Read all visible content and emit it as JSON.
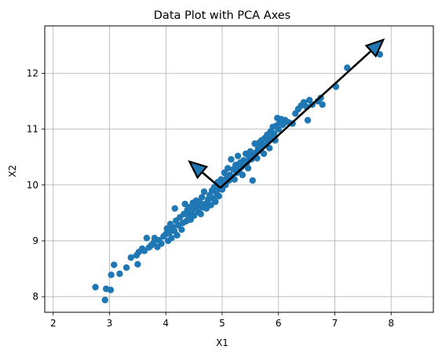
{
  "chart_data": {
    "type": "scatter",
    "title": "Data Plot with PCA Axes",
    "xlabel": "X1",
    "ylabel": "X2",
    "xlim": [
      1.85,
      8.75
    ],
    "ylim": [
      7.72,
      12.85
    ],
    "xticks": [
      2,
      3,
      4,
      5,
      6,
      7,
      8
    ],
    "yticks": [
      8,
      9,
      10,
      11,
      12
    ],
    "grid": true,
    "point_color": "#1f77b4",
    "arrow_fill": "#1f77b4",
    "arrow_stroke": "#000000",
    "mean": [
      4.97,
      9.95
    ],
    "components": [
      {
        "end": [
          7.86,
          12.6
        ]
      },
      {
        "end": [
          4.42,
          10.42
        ]
      }
    ],
    "points": [
      [
        2.75,
        8.17
      ],
      [
        2.92,
        7.94
      ],
      [
        2.94,
        8.14
      ],
      [
        3.02,
        8.12
      ],
      [
        3.03,
        8.39
      ],
      [
        3.08,
        8.57
      ],
      [
        3.18,
        8.41
      ],
      [
        3.3,
        8.52
      ],
      [
        3.38,
        8.7
      ],
      [
        3.48,
        8.74
      ],
      [
        3.5,
        8.58
      ],
      [
        3.52,
        8.8
      ],
      [
        3.58,
        8.86
      ],
      [
        3.62,
        8.82
      ],
      [
        3.66,
        9.05
      ],
      [
        3.7,
        8.88
      ],
      [
        3.74,
        8.92
      ],
      [
        3.78,
        8.96
      ],
      [
        3.8,
        9.05
      ],
      [
        3.85,
        8.89
      ],
      [
        3.88,
        9.01
      ],
      [
        3.92,
        8.95
      ],
      [
        3.96,
        9.08
      ],
      [
        4.0,
        9.12
      ],
      [
        4.02,
        9.22
      ],
      [
        4.04,
        9.0
      ],
      [
        4.06,
        9.15
      ],
      [
        4.08,
        9.3
      ],
      [
        4.1,
        9.05
      ],
      [
        4.12,
        9.25
      ],
      [
        4.15,
        9.18
      ],
      [
        4.16,
        9.58
      ],
      [
        4.18,
        9.36
      ],
      [
        4.2,
        9.1
      ],
      [
        4.22,
        9.28
      ],
      [
        4.25,
        9.42
      ],
      [
        4.28,
        9.2
      ],
      [
        4.3,
        9.32
      ],
      [
        4.32,
        9.48
      ],
      [
        4.34,
        9.66
      ],
      [
        4.36,
        9.35
      ],
      [
        4.38,
        9.55
      ],
      [
        4.4,
        9.44
      ],
      [
        4.42,
        9.6
      ],
      [
        4.44,
        9.38
      ],
      [
        4.46,
        9.5
      ],
      [
        4.48,
        9.68
      ],
      [
        4.5,
        9.45
      ],
      [
        4.52,
        9.58
      ],
      [
        4.54,
        9.72
      ],
      [
        4.56,
        9.62
      ],
      [
        4.58,
        9.52
      ],
      [
        4.6,
        9.7
      ],
      [
        4.62,
        9.48
      ],
      [
        4.64,
        9.78
      ],
      [
        4.66,
        9.6
      ],
      [
        4.68,
        9.88
      ],
      [
        4.7,
        9.66
      ],
      [
        4.72,
        9.58
      ],
      [
        4.75,
        9.74
      ],
      [
        4.78,
        9.82
      ],
      [
        4.8,
        9.64
      ],
      [
        4.82,
        9.9
      ],
      [
        4.84,
        9.76
      ],
      [
        4.86,
        9.96
      ],
      [
        4.88,
        9.7
      ],
      [
        4.9,
        9.86
      ],
      [
        4.92,
        10.05
      ],
      [
        4.94,
        9.8
      ],
      [
        4.96,
        9.94
      ],
      [
        4.98,
        10.1
      ],
      [
        5.0,
        9.92
      ],
      [
        5.02,
        10.02
      ],
      [
        5.04,
        10.22
      ],
      [
        5.06,
        10.0
      ],
      [
        5.08,
        10.12
      ],
      [
        5.1,
        10.3
      ],
      [
        5.12,
        10.08
      ],
      [
        5.14,
        10.18
      ],
      [
        5.16,
        10.46
      ],
      [
        5.18,
        10.14
      ],
      [
        5.2,
        10.28
      ],
      [
        5.22,
        10.1
      ],
      [
        5.24,
        10.36
      ],
      [
        5.26,
        10.22
      ],
      [
        5.28,
        10.52
      ],
      [
        5.3,
        10.26
      ],
      [
        5.32,
        10.4
      ],
      [
        5.34,
        10.32
      ],
      [
        5.36,
        10.18
      ],
      [
        5.38,
        10.44
      ],
      [
        5.4,
        10.36
      ],
      [
        5.42,
        10.56
      ],
      [
        5.44,
        10.4
      ],
      [
        5.46,
        10.3
      ],
      [
        5.48,
        10.5
      ],
      [
        5.5,
        10.6
      ],
      [
        5.52,
        10.46
      ],
      [
        5.54,
        10.08
      ],
      [
        5.56,
        10.52
      ],
      [
        5.58,
        10.74
      ],
      [
        5.6,
        10.58
      ],
      [
        5.62,
        10.48
      ],
      [
        5.64,
        10.66
      ],
      [
        5.66,
        10.76
      ],
      [
        5.68,
        10.62
      ],
      [
        5.7,
        10.8
      ],
      [
        5.72,
        10.7
      ],
      [
        5.74,
        10.56
      ],
      [
        5.76,
        10.84
      ],
      [
        5.78,
        10.72
      ],
      [
        5.8,
        10.9
      ],
      [
        5.82,
        10.8
      ],
      [
        5.84,
        10.66
      ],
      [
        5.86,
        10.96
      ],
      [
        5.88,
        10.84
      ],
      [
        5.9,
        11.04
      ],
      [
        5.92,
        10.92
      ],
      [
        5.94,
        10.8
      ],
      [
        5.96,
        11.06
      ],
      [
        5.98,
        11.2
      ],
      [
        6.0,
        11.0
      ],
      [
        6.02,
        11.12
      ],
      [
        6.05,
        11.18
      ],
      [
        6.08,
        11.08
      ],
      [
        6.12,
        11.16
      ],
      [
        6.18,
        11.12
      ],
      [
        6.25,
        11.1
      ],
      [
        6.3,
        11.28
      ],
      [
        6.35,
        11.36
      ],
      [
        6.4,
        11.42
      ],
      [
        6.45,
        11.48
      ],
      [
        6.5,
        11.4
      ],
      [
        6.52,
        11.16
      ],
      [
        6.55,
        11.52
      ],
      [
        6.6,
        11.44
      ],
      [
        6.7,
        11.5
      ],
      [
        6.75,
        11.56
      ],
      [
        6.78,
        11.44
      ],
      [
        7.02,
        11.76
      ],
      [
        7.22,
        12.1
      ],
      [
        7.8,
        12.34
      ]
    ]
  }
}
